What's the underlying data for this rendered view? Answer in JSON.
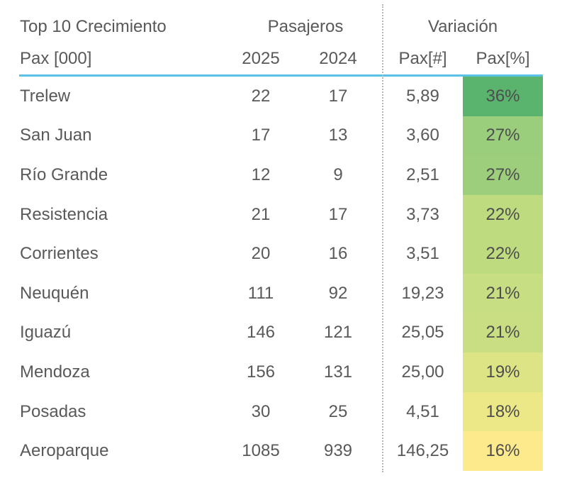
{
  "chart_data": {
    "type": "table",
    "title": "Top 10 Crecimiento",
    "row_label_header": "Pax [000]",
    "groups": {
      "pasajeros": "Pasajeros",
      "variacion": "Variación"
    },
    "columns": {
      "year_2025": "2025",
      "year_2024": "2024",
      "pax_abs": "Pax[#]",
      "pax_pct": "Pax[%]"
    },
    "rows": [
      {
        "name": "Trelew",
        "y2025": "22",
        "y2024": "17",
        "pax_abs": "5,89",
        "pax_pct": "36%",
        "pct_bg": "#5ab46e"
      },
      {
        "name": "San Juan",
        "y2025": "17",
        "y2024": "13",
        "pax_abs": "3,60",
        "pax_pct": "27%",
        "pct_bg": "#9bce7c"
      },
      {
        "name": "Río Grande",
        "y2025": "12",
        "y2024": "9",
        "pax_abs": "2,51",
        "pax_pct": "27%",
        "pct_bg": "#9cce7c"
      },
      {
        "name": "Resistencia",
        "y2025": "21",
        "y2024": "17",
        "pax_abs": "3,73",
        "pax_pct": "22%",
        "pct_bg": "#bedb7f"
      },
      {
        "name": "Corrientes",
        "y2025": "20",
        "y2024": "16",
        "pax_abs": "3,51",
        "pax_pct": "22%",
        "pct_bg": "#bfdb80"
      },
      {
        "name": "Neuquén",
        "y2025": "111",
        "y2024": "92",
        "pax_abs": "19,23",
        "pax_pct": "21%",
        "pct_bg": "#c7de82"
      },
      {
        "name": "Iguazú",
        "y2025": "146",
        "y2024": "121",
        "pax_abs": "25,05",
        "pax_pct": "21%",
        "pct_bg": "#c9de82"
      },
      {
        "name": "Mendoza",
        "y2025": "156",
        "y2024": "131",
        "pax_abs": "25,00",
        "pax_pct": "19%",
        "pct_bg": "#dde485"
      },
      {
        "name": "Posadas",
        "y2025": "30",
        "y2024": "25",
        "pax_abs": "4,51",
        "pax_pct": "18%",
        "pct_bg": "#ece787"
      },
      {
        "name": "Aeroparque",
        "y2025": "1085",
        "y2024": "939",
        "pax_abs": "146,25",
        "pax_pct": "16%",
        "pct_bg": "#fcea8c"
      }
    ]
  },
  "style": {
    "text_color": "#595959",
    "underline_color": "#5bc2e7",
    "divider_color": "#b7b7b7",
    "background": "#ffffff"
  }
}
